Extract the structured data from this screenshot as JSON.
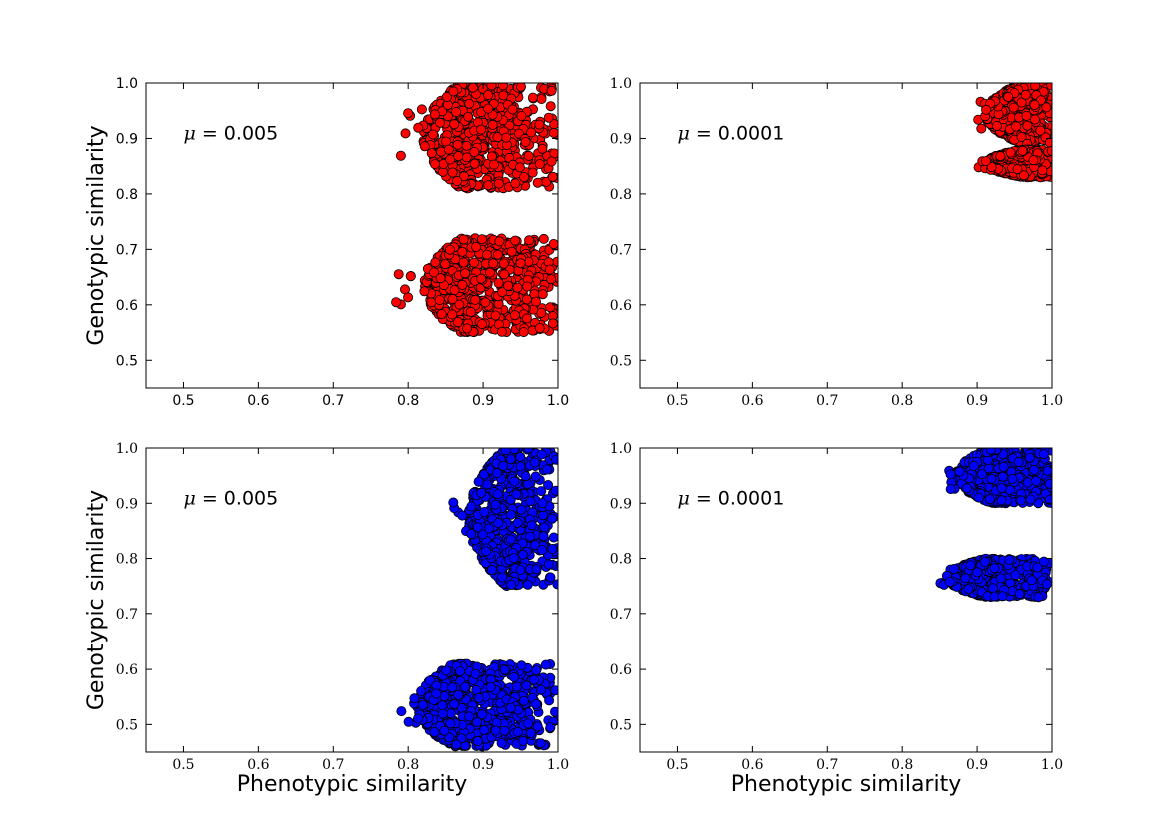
{
  "chart_data": [
    {
      "type": "scatter",
      "panel": "top-left",
      "annotation": {
        "symbol": "μ",
        "text": " = 0.005"
      },
      "ylabel": "Genotypic similarity",
      "xlabel": "",
      "xlim": [
        0.45,
        1.0
      ],
      "ylim": [
        0.45,
        1.0
      ],
      "xticks": [
        "0.5",
        "0.6",
        "0.7",
        "0.8",
        "0.9",
        "1.0"
      ],
      "yticks": [
        "0.5",
        "0.6",
        "0.7",
        "0.8",
        "0.9",
        "1.0"
      ],
      "tick_font": "sans",
      "color": "#ff0000",
      "clusters": [
        {
          "x": [
            0.82,
            1.0
          ],
          "y": [
            0.81,
            1.0
          ],
          "x_min_tail": 0.79
        },
        {
          "x": [
            0.82,
            1.0
          ],
          "y": [
            0.55,
            0.72
          ],
          "x_min_tail": 0.78
        }
      ]
    },
    {
      "type": "scatter",
      "panel": "top-right",
      "annotation": {
        "symbol": "μ",
        "text": " = 0.0001"
      },
      "ylabel": "",
      "xlabel": "",
      "xlim": [
        0.45,
        1.0
      ],
      "ylim": [
        0.45,
        1.0
      ],
      "xticks": [
        "0.5",
        "0.6",
        "0.7",
        "0.8",
        "0.9",
        "1.0"
      ],
      "yticks": [
        "0.5",
        "0.6",
        "0.7",
        "0.8",
        "0.9",
        "1.0"
      ],
      "tick_font": "serif",
      "color": "#ff0000",
      "clusters": [
        {
          "x": [
            0.91,
            1.0
          ],
          "y": [
            0.89,
            1.0
          ],
          "x_min_tail": 0.9
        },
        {
          "x": [
            0.91,
            1.0
          ],
          "y": [
            0.83,
            0.88
          ],
          "x_min_tail": 0.9
        }
      ]
    },
    {
      "type": "scatter",
      "panel": "bottom-left",
      "annotation": {
        "symbol": "μ",
        "text": " = 0.005"
      },
      "ylabel": "Genotypic similarity",
      "xlabel": "Phenotypic similarity",
      "xlim": [
        0.45,
        1.0
      ],
      "ylim": [
        0.45,
        1.0
      ],
      "xticks": [
        "0.5",
        "0.6",
        "0.7",
        "0.8",
        "0.9",
        "1.0"
      ],
      "yticks": [
        "0.5",
        "0.6",
        "0.7",
        "0.8",
        "0.9",
        "1.0"
      ],
      "tick_font": "serif",
      "color": "#0000ff",
      "clusters": [
        {
          "x": [
            0.88,
            1.0
          ],
          "y": [
            0.75,
            1.0
          ],
          "x_min_tail": 0.86
        },
        {
          "x": [
            0.81,
            1.0
          ],
          "y": [
            0.46,
            0.61
          ],
          "x_min_tail": 0.79
        }
      ]
    },
    {
      "type": "scatter",
      "panel": "bottom-right",
      "annotation": {
        "symbol": "μ",
        "text": " = 0.0001"
      },
      "ylabel": "",
      "xlabel": "Phenotypic similarity",
      "xlim": [
        0.45,
        1.0
      ],
      "ylim": [
        0.45,
        1.0
      ],
      "xticks": [
        "0.5",
        "0.6",
        "0.7",
        "0.8",
        "0.9",
        "1.0"
      ],
      "yticks": [
        "0.5",
        "0.6",
        "0.7",
        "0.8",
        "0.9",
        "1.0"
      ],
      "tick_font": "serif",
      "color": "#0000ff",
      "clusters": [
        {
          "x": [
            0.87,
            1.0
          ],
          "y": [
            0.9,
            1.0
          ],
          "x_min_tail": 0.86
        },
        {
          "x": [
            0.86,
            1.0
          ],
          "y": [
            0.73,
            0.8
          ],
          "x_min_tail": 0.85
        }
      ]
    }
  ]
}
